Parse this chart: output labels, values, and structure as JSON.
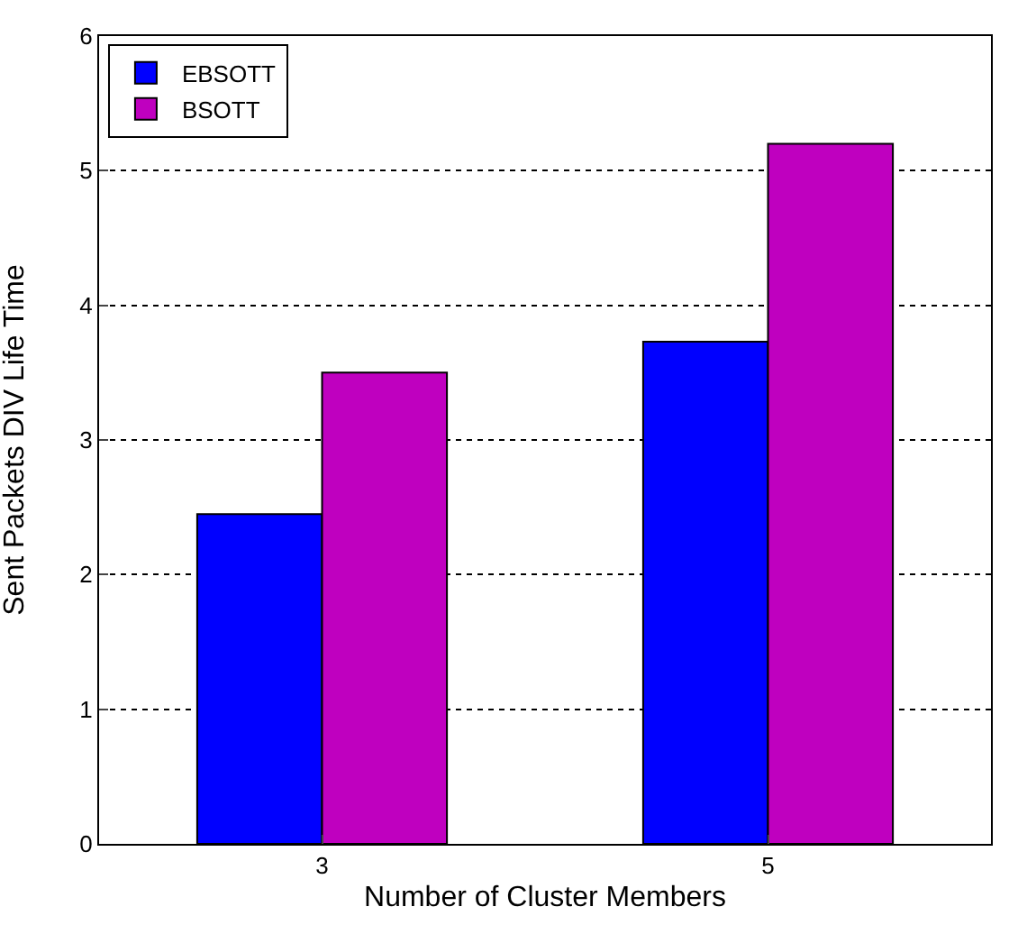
{
  "chart_data": {
    "type": "bar",
    "xlabel": "Number of Cluster Members",
    "ylabel": "Sent Packets DIV Life Time",
    "categories": [
      "3",
      "5"
    ],
    "series": [
      {
        "name": "EBSOTT",
        "color": "#0000ff",
        "values": [
          2.45,
          3.73
        ]
      },
      {
        "name": "BSOTT",
        "color": "#bf00bf",
        "values": [
          3.5,
          5.2
        ]
      }
    ],
    "ylim": [
      0,
      6
    ],
    "yticks": [
      0,
      1,
      2,
      3,
      4,
      5,
      6
    ],
    "grid": "y",
    "legend": "top left"
  }
}
